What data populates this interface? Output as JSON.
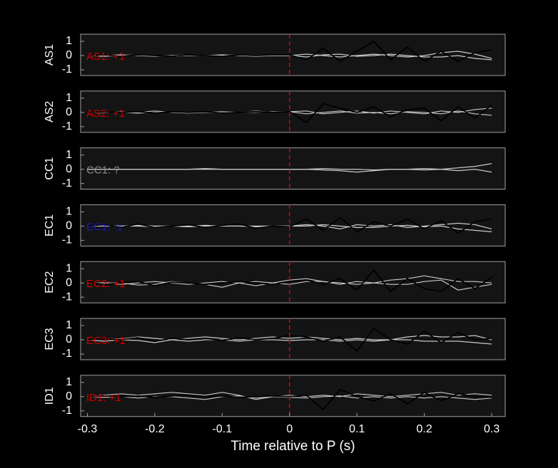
{
  "chart_data": [
    {
      "type": "line",
      "ylabel": "AS1",
      "annotation": "AS1: +1",
      "annotation_color": "#d40000",
      "marker_x": 0,
      "marker_color": "#e00000",
      "xlim": [
        -0.31,
        0.32
      ],
      "ylim": [
        -1.4,
        1.5
      ],
      "yticks": [
        -1,
        0,
        1
      ],
      "x": [
        -0.3,
        -0.275,
        -0.25,
        -0.225,
        -0.2,
        -0.175,
        -0.15,
        -0.125,
        -0.1,
        -0.075,
        -0.05,
        -0.025,
        0,
        0.025,
        0.05,
        0.075,
        0.1,
        0.125,
        0.15,
        0.175,
        0.2,
        0.225,
        0.25,
        0.275,
        0.3
      ],
      "series": [
        {
          "color": "#c8c8c8",
          "values": [
            0,
            0,
            0.05,
            0,
            -0.05,
            0,
            0.05,
            0,
            0,
            0.05,
            0,
            0,
            0,
            0.1,
            0,
            -0.1,
            0,
            0.1,
            0,
            -0.1,
            0,
            0.2,
            0.3,
            0.1,
            -0.2
          ]
        },
        {
          "color": "#c8c8c8",
          "values": [
            0,
            -0.05,
            0,
            0.05,
            0,
            -0.05,
            0,
            0,
            0.05,
            0,
            -0.05,
            0,
            0,
            -0.1,
            0.05,
            0.1,
            -0.05,
            0,
            0.1,
            0,
            -0.1,
            -0.1,
            0,
            -0.2,
            -0.3
          ]
        },
        {
          "color": "#000000",
          "values": [
            0,
            0.05,
            -0.05,
            0.05,
            0,
            -0.05,
            0.05,
            0,
            -0.05,
            0.05,
            0,
            0.05,
            0.05,
            -0.3,
            0.5,
            -0.4,
            0.3,
            1.0,
            -0.3,
            0.6,
            -0.4,
            0.3,
            -0.4,
            0.2,
            0.4
          ]
        }
      ]
    },
    {
      "type": "line",
      "ylabel": "AS2",
      "annotation": "AS2: +1",
      "annotation_color": "#d40000",
      "marker_x": 0,
      "marker_color": "#e00000",
      "xlim": [
        -0.31,
        0.32
      ],
      "ylim": [
        -1.4,
        1.5
      ],
      "yticks": [
        -1,
        0,
        1
      ],
      "x": [
        -0.3,
        -0.275,
        -0.25,
        -0.225,
        -0.2,
        -0.175,
        -0.15,
        -0.125,
        -0.1,
        -0.075,
        -0.05,
        -0.025,
        0,
        0.025,
        0.05,
        0.075,
        0.1,
        0.125,
        0.15,
        0.175,
        0.2,
        0.225,
        0.25,
        0.275,
        0.3
      ],
      "series": [
        {
          "color": "#c8c8c8",
          "values": [
            0,
            0,
            0.05,
            0,
            0.1,
            0,
            -0.05,
            0,
            0.05,
            0,
            0.1,
            0,
            0.05,
            0.1,
            -0.1,
            0,
            0.1,
            -0.05,
            0.1,
            0,
            -0.1,
            0.1,
            0,
            0.2,
            0.3
          ]
        },
        {
          "color": "#c8c8c8",
          "values": [
            0,
            0.05,
            0,
            -0.05,
            0,
            0.05,
            0,
            0,
            -0.05,
            0,
            0,
            0.05,
            0.05,
            -0.1,
            0,
            0.1,
            -0.05,
            0,
            -0.1,
            0.05,
            0,
            -0.1,
            0.1,
            -0.1,
            -0.2
          ]
        },
        {
          "color": "#000000",
          "values": [
            0,
            0.05,
            0,
            0.05,
            -0.05,
            0.05,
            0,
            0.05,
            -0.05,
            0,
            0.05,
            0,
            0.05,
            -0.7,
            0.6,
            0.3,
            0,
            0.4,
            -0.3,
            0.2,
            0.3,
            -0.6,
            0.4,
            -0.4,
            0.5
          ]
        }
      ]
    },
    {
      "type": "line",
      "ylabel": "CC1",
      "annotation": "CC1: ?",
      "annotation_color": "#8c8c8c",
      "marker_x": 0,
      "marker_color": "#e00000",
      "xlim": [
        -0.31,
        0.32
      ],
      "ylim": [
        -1.4,
        1.5
      ],
      "yticks": [
        -1,
        0,
        1
      ],
      "x": [
        -0.3,
        -0.275,
        -0.25,
        -0.225,
        -0.2,
        -0.175,
        -0.15,
        -0.125,
        -0.1,
        -0.075,
        -0.05,
        -0.025,
        0,
        0.025,
        0.05,
        0.075,
        0.1,
        0.125,
        0.15,
        0.175,
        0.2,
        0.225,
        0.25,
        0.275,
        0.3
      ],
      "series": [
        {
          "color": "#c8c8c8",
          "values": [
            0,
            0,
            0,
            0,
            0,
            0,
            0,
            0.05,
            0,
            0,
            0,
            0,
            0,
            0,
            0.05,
            0,
            0,
            -0.05,
            0,
            0,
            0.05,
            0,
            0.1,
            0.2,
            0.4
          ]
        },
        {
          "color": "#c8c8c8",
          "values": [
            0,
            0,
            0,
            0,
            0,
            0,
            0,
            0,
            0,
            0,
            0,
            0,
            0,
            0,
            -0.05,
            -0.1,
            -0.2,
            -0.1,
            0,
            0,
            -0.05,
            0,
            -0.1,
            0,
            -0.2
          ]
        }
      ]
    },
    {
      "type": "line",
      "ylabel": "EC1",
      "annotation": "EC1: -1",
      "annotation_color": "#1a1ab4",
      "marker_x": 0,
      "marker_color": "#e00000",
      "xlim": [
        -0.31,
        0.32
      ],
      "ylim": [
        -1.4,
        1.5
      ],
      "yticks": [
        -1,
        0,
        1
      ],
      "x": [
        -0.3,
        -0.275,
        -0.25,
        -0.225,
        -0.2,
        -0.175,
        -0.15,
        -0.125,
        -0.1,
        -0.075,
        -0.05,
        -0.025,
        0,
        0.025,
        0.05,
        0.075,
        0.1,
        0.125,
        0.15,
        0.175,
        0.2,
        0.225,
        0.25,
        0.275,
        0.3
      ],
      "series": [
        {
          "color": "#c8c8c8",
          "values": [
            0,
            0,
            0,
            0.05,
            0,
            0,
            -0.05,
            0,
            0,
            0,
            0,
            0,
            0,
            0.1,
            0,
            -0.2,
            0.1,
            0,
            0.1,
            -0.1,
            0,
            0.1,
            0.2,
            0.1,
            -0.2
          ]
        },
        {
          "color": "#c8c8c8",
          "values": [
            0,
            0,
            0,
            0,
            -0.05,
            0,
            0,
            0.05,
            0,
            0,
            -0.05,
            0,
            0,
            0,
            0.1,
            0,
            -0.1,
            -0.1,
            0,
            0.05,
            -0.05,
            0,
            -0.2,
            -0.3,
            -0.4
          ]
        },
        {
          "color": "#000000",
          "values": [
            0,
            0.1,
            -0.1,
            0.15,
            -0.1,
            0,
            0.1,
            -0.1,
            0.05,
            0.15,
            -0.15,
            0,
            -0.05,
            0.5,
            -0.3,
            0.6,
            -0.4,
            0.3,
            0,
            0.5,
            -0.2,
            0.4,
            -0.5,
            0.3,
            0.5
          ]
        }
      ]
    },
    {
      "type": "line",
      "ylabel": "EC2",
      "annotation": "EC2: +1",
      "annotation_color": "#d40000",
      "marker_x": 0,
      "marker_color": "#e00000",
      "xlim": [
        -0.31,
        0.32
      ],
      "ylim": [
        -1.4,
        1.5
      ],
      "yticks": [
        -1,
        0,
        1
      ],
      "x": [
        -0.3,
        -0.275,
        -0.25,
        -0.225,
        -0.2,
        -0.175,
        -0.15,
        -0.125,
        -0.1,
        -0.075,
        -0.05,
        -0.025,
        0,
        0.025,
        0.05,
        0.075,
        0.1,
        0.125,
        0.15,
        0.175,
        0.2,
        0.225,
        0.25,
        0.275,
        0.3
      ],
      "series": [
        {
          "color": "#c8c8c8",
          "values": [
            0,
            0,
            -0.1,
            0,
            0.1,
            0,
            -0.1,
            0,
            0.1,
            0,
            -0.2,
            0,
            0.2,
            0.3,
            0.1,
            0,
            -0.1,
            0,
            0.2,
            0.3,
            0.5,
            0.3,
            0.1,
            0.1,
            0
          ]
        },
        {
          "color": "#c8c8c8",
          "values": [
            0,
            0,
            0,
            -0.15,
            -0.1,
            0.1,
            0,
            -0.1,
            -0.3,
            0,
            0.1,
            0,
            -0.1,
            0.1,
            0.1,
            -0.1,
            0.1,
            0,
            -0.1,
            -0.1,
            0.1,
            0.2,
            -0.5,
            -0.3,
            -0.1
          ]
        },
        {
          "color": "#000000",
          "values": [
            0.05,
            -0.1,
            0,
            0.1,
            -0.2,
            0.05,
            0,
            -0.1,
            0,
            0.1,
            0,
            -0.1,
            0.1,
            0.2,
            -0.1,
            0.3,
            -0.5,
            0.9,
            -0.6,
            0.3,
            -0.4,
            -0.6,
            0.3,
            -0.4,
            0.4
          ]
        }
      ]
    },
    {
      "type": "line",
      "ylabel": "EC3",
      "annotation": "EC3: +1",
      "annotation_color": "#d40000",
      "marker_x": 0,
      "marker_color": "#e00000",
      "xlim": [
        -0.31,
        0.32
      ],
      "ylim": [
        -1.4,
        1.5
      ],
      "yticks": [
        -1,
        0,
        1
      ],
      "x": [
        -0.3,
        -0.275,
        -0.25,
        -0.225,
        -0.2,
        -0.175,
        -0.15,
        -0.125,
        -0.1,
        -0.075,
        -0.05,
        -0.025,
        0,
        0.025,
        0.05,
        0.075,
        0.1,
        0.125,
        0.15,
        0.175,
        0.2,
        0.225,
        0.25,
        0.275,
        0.3
      ],
      "series": [
        {
          "color": "#c8c8c8",
          "values": [
            0,
            0.1,
            0.05,
            0.2,
            0.1,
            0,
            0.1,
            0.2,
            0.1,
            0,
            0.1,
            0.2,
            0.1,
            0.2,
            0.1,
            0,
            0.1,
            0,
            0,
            0.2,
            0.3,
            0.2,
            0.2,
            0.3,
            0
          ]
        },
        {
          "color": "#c8c8c8",
          "values": [
            0,
            -0.1,
            0,
            -0.05,
            -0.2,
            0,
            -0.1,
            0,
            0,
            -0.1,
            0,
            0,
            -0.05,
            0,
            0,
            -0.1,
            0,
            -0.1,
            0,
            0,
            -0.1,
            -0.1,
            -0.1,
            -0.2,
            -0.3
          ]
        },
        {
          "color": "#000000",
          "values": [
            0,
            0.1,
            0,
            0.15,
            -0.1,
            0.1,
            0,
            0.1,
            -0.05,
            0.15,
            0,
            0.1,
            0.3,
            0.2,
            -0.1,
            0.2,
            -0.8,
            0.8,
            0,
            -0.3,
            0.6,
            -0.2,
            0.5,
            0,
            0.1
          ]
        }
      ]
    },
    {
      "type": "line",
      "ylabel": "ID1",
      "annotation": "ID1: +1",
      "annotation_color": "#d40000",
      "marker_x": 0,
      "marker_color": "#e00000",
      "xlim": [
        -0.31,
        0.32
      ],
      "ylim": [
        -1.4,
        1.5
      ],
      "yticks": [
        -1,
        0,
        1
      ],
      "xticks": [
        -0.3,
        -0.2,
        -0.1,
        0,
        0.1,
        0.2,
        0.3
      ],
      "xlabel": "Time relative to P (s)",
      "x": [
        -0.3,
        -0.275,
        -0.25,
        -0.225,
        -0.2,
        -0.175,
        -0.15,
        -0.125,
        -0.1,
        -0.075,
        -0.05,
        -0.025,
        0,
        0.025,
        0.05,
        0.075,
        0.1,
        0.125,
        0.15,
        0.175,
        0.2,
        0.225,
        0.25,
        0.275,
        0.3
      ],
      "series": [
        {
          "color": "#c8c8c8",
          "values": [
            0,
            0.1,
            0.2,
            0.1,
            0.2,
            0.3,
            0.2,
            0.1,
            0.3,
            0.1,
            -0.2,
            0,
            0.1,
            0,
            0.1,
            0,
            0.2,
            0.1,
            0,
            0.1,
            0.2,
            0.3,
            0.1,
            0.2,
            0.1
          ]
        },
        {
          "color": "#c8c8c8",
          "values": [
            0,
            -0.05,
            0,
            -0.1,
            0,
            0,
            -0.1,
            -0.2,
            0,
            0.05,
            -0.1,
            0,
            -0.05,
            -0.1,
            0,
            0.05,
            -0.1,
            0,
            -0.1,
            0,
            -0.1,
            0,
            -0.1,
            -0.2,
            -0.1
          ]
        },
        {
          "color": "#000000",
          "values": [
            0,
            0.05,
            0,
            0.05,
            -0.05,
            0.05,
            0.1,
            0,
            0.05,
            -0.05,
            0,
            0.05,
            0,
            0.1,
            -0.9,
            0.5,
            0,
            -0.3,
            0.2,
            -0.5,
            0.3,
            -0.3,
            0.2,
            0,
            -0.05
          ]
        }
      ]
    }
  ]
}
